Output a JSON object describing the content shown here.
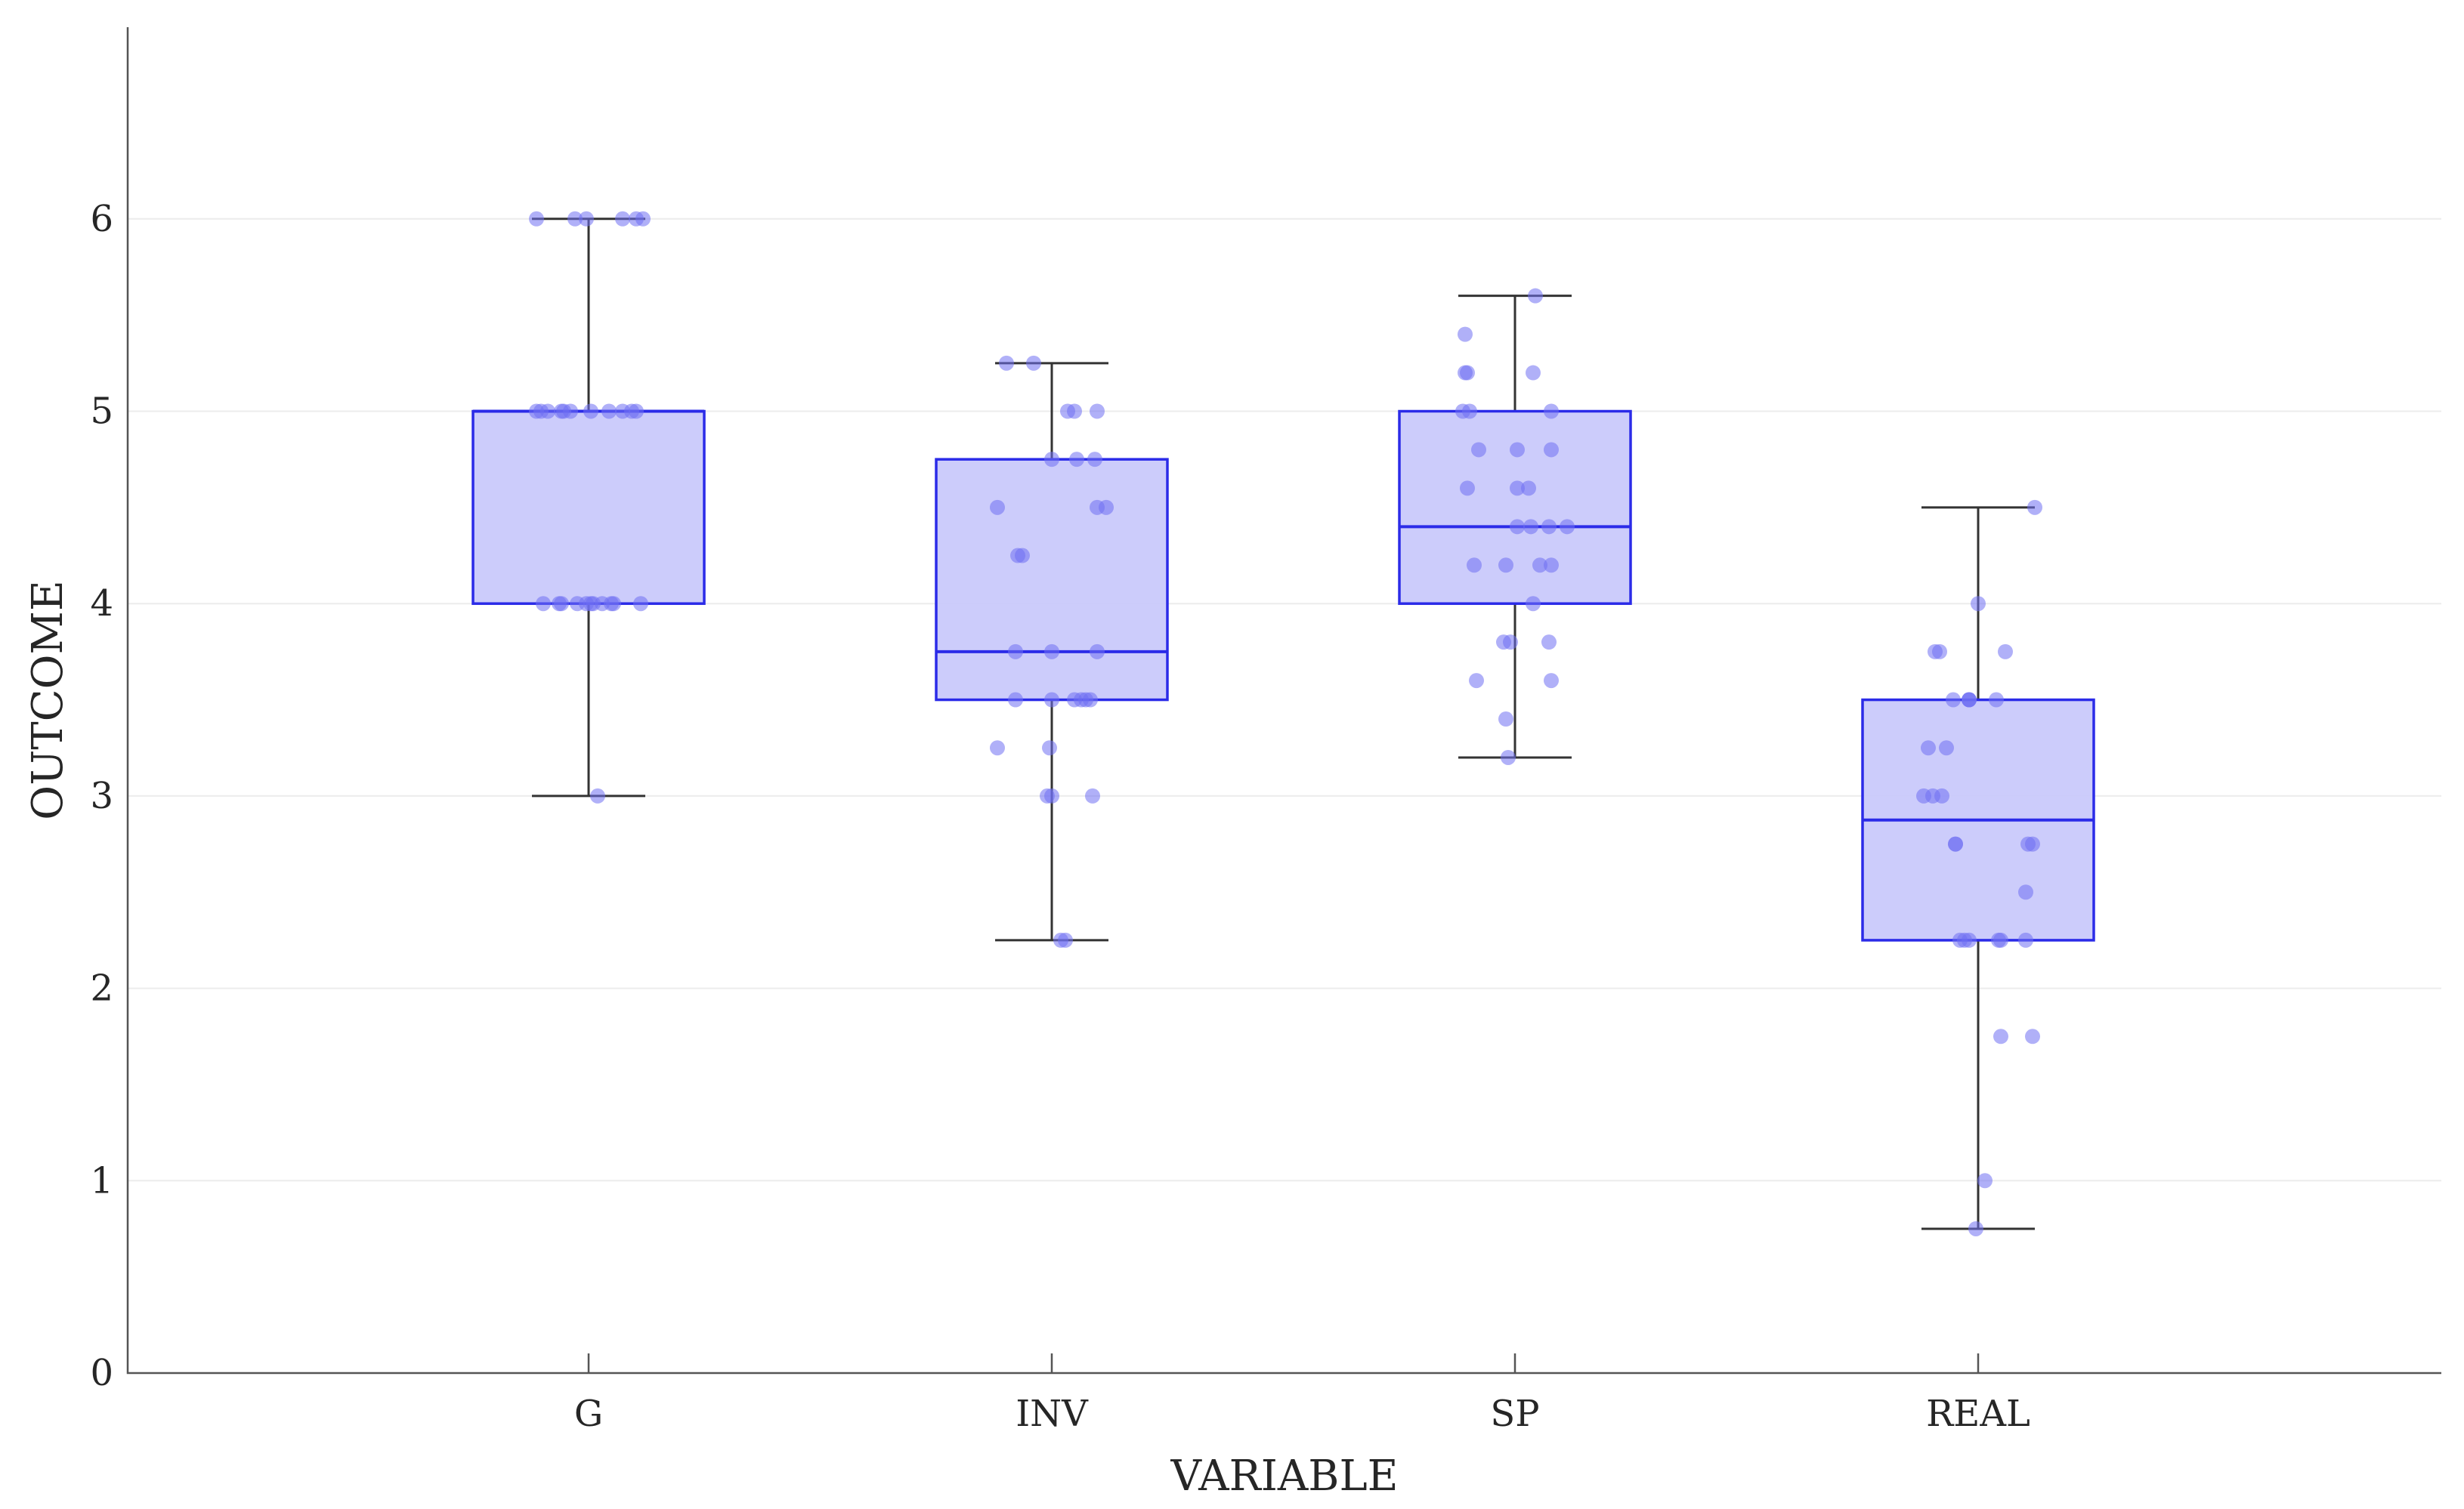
{
  "chart_data": {
    "type": "box",
    "title": "",
    "xlabel": "VARIABLE",
    "ylabel": "OUTCOME",
    "ylim": [
      0,
      7
    ],
    "yticks": [
      0,
      1,
      2,
      3,
      4,
      5,
      6
    ],
    "ytick_labels": [
      "0",
      "1",
      "2",
      "3",
      "4",
      "5",
      "6"
    ],
    "grid": "horizontal",
    "colors": {
      "box_fill": "#c9c9fb",
      "box_edge": "#2b2be8",
      "point": "#6f6ff2",
      "whisker": "#333333"
    },
    "categories": [
      "G",
      "INV",
      "SP",
      "REAL"
    ],
    "boxes": [
      {
        "label": "G",
        "whisker_low": 3.0,
        "q1": 4.0,
        "median": 5.0,
        "q3": 5.0,
        "whisker_high": 6.0
      },
      {
        "label": "INV",
        "whisker_low": 2.25,
        "q1": 3.5,
        "median": 3.75,
        "q3": 4.75,
        "whisker_high": 5.25
      },
      {
        "label": "SP",
        "whisker_low": 3.2,
        "q1": 4.0,
        "median": 4.4,
        "q3": 5.0,
        "whisker_high": 5.6
      },
      {
        "label": "REAL",
        "whisker_low": 0.75,
        "q1": 2.25,
        "median": 2.875,
        "q3": 3.5,
        "whisker_high": 4.5
      }
    ],
    "points": [
      {
        "category": "G",
        "values": [
          6,
          6,
          6,
          6,
          6,
          6,
          5,
          5,
          5,
          5,
          5,
          5,
          5,
          5,
          5,
          5,
          5,
          4,
          4,
          4,
          4,
          4,
          4,
          4,
          4,
          4,
          4,
          4,
          3
        ],
        "offsets": [
          -0.23,
          -0.06,
          -0.01,
          0.15,
          0.21,
          0.24,
          -0.23,
          -0.21,
          -0.18,
          -0.12,
          -0.11,
          -0.08,
          0.01,
          0.09,
          0.15,
          0.19,
          0.21,
          -0.2,
          -0.13,
          -0.12,
          -0.05,
          -0.01,
          0.01,
          0.02,
          0.06,
          0.1,
          0.11,
          0.23,
          0.04
        ]
      },
      {
        "category": "INV",
        "values": [
          5.25,
          5.25,
          5,
          5,
          5,
          4.75,
          4.75,
          4.75,
          4.5,
          4.5,
          4.5,
          4.25,
          4.25,
          3.75,
          3.75,
          3.75,
          3.5,
          3.5,
          3.5,
          3.5,
          3.5,
          3.5,
          3.25,
          3.25,
          3,
          3,
          3,
          2.25,
          2.25
        ],
        "offsets": [
          -0.2,
          -0.08,
          0.07,
          0.1,
          0.2,
          0.0,
          0.11,
          0.19,
          -0.24,
          0.2,
          0.24,
          -0.15,
          -0.13,
          -0.16,
          0.0,
          0.2,
          -0.16,
          0.0,
          0.1,
          0.13,
          0.15,
          0.17,
          -0.24,
          -0.01,
          -0.02,
          0.0,
          0.18,
          0.04,
          0.06
        ]
      },
      {
        "category": "SP",
        "values": [
          5.6,
          5.4,
          5.2,
          5.2,
          5.2,
          5,
          5,
          5,
          4.8,
          4.8,
          4.8,
          4.6,
          4.6,
          4.6,
          4.4,
          4.4,
          4.4,
          4.4,
          4.2,
          4.2,
          4.2,
          4.2,
          4,
          3.8,
          3.8,
          3.8,
          3.6,
          3.6,
          3.4,
          3.2
        ],
        "offsets": [
          0.09,
          -0.22,
          -0.22,
          -0.21,
          0.08,
          -0.23,
          -0.2,
          0.16,
          -0.16,
          0.01,
          0.16,
          -0.21,
          0.01,
          0.06,
          0.01,
          0.07,
          0.15,
          0.23,
          -0.18,
          -0.04,
          0.11,
          0.16,
          0.08,
          -0.05,
          -0.02,
          0.15,
          -0.17,
          0.16,
          -0.04,
          -0.03
        ]
      },
      {
        "category": "REAL",
        "values": [
          4.5,
          4,
          3.75,
          3.75,
          3.75,
          3.5,
          3.5,
          3.5,
          3.5,
          3.5,
          3.25,
          3.25,
          3,
          3,
          3,
          2.75,
          2.75,
          2.75,
          2.75,
          2.5,
          2.25,
          2.25,
          2.25,
          2.25,
          2.25,
          2.25,
          1.75,
          1.75,
          1,
          0.75
        ],
        "offsets": [
          0.25,
          0.0,
          -0.19,
          -0.17,
          0.12,
          -0.11,
          -0.04,
          -0.04,
          -0.04,
          0.08,
          -0.22,
          -0.14,
          -0.24,
          -0.2,
          -0.16,
          -0.1,
          -0.1,
          0.22,
          0.24,
          0.21,
          -0.08,
          -0.06,
          -0.04,
          0.09,
          0.1,
          0.21,
          0.1,
          0.24,
          0.03,
          -0.01
        ]
      }
    ]
  }
}
